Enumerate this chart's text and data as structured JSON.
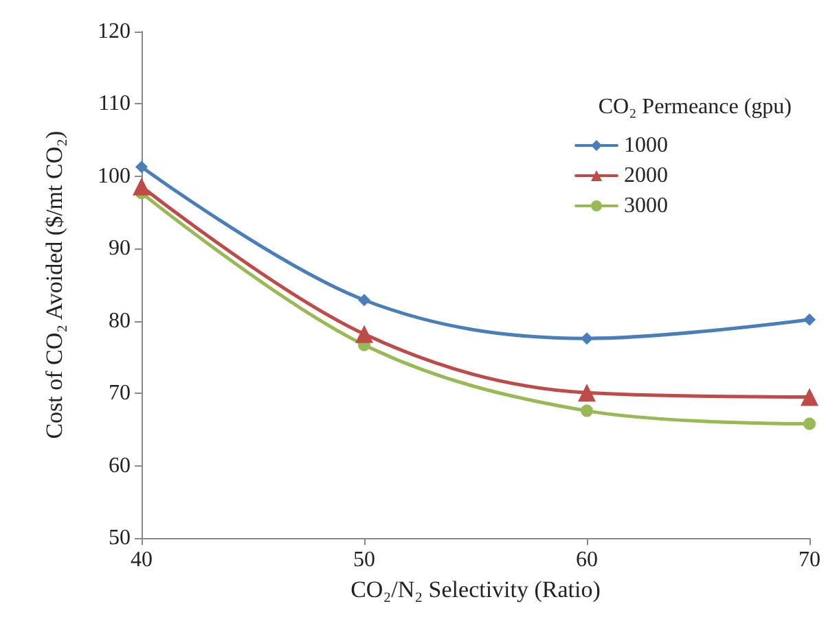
{
  "chart_data": {
    "type": "line",
    "xlabel": "CO₂/N₂ Selectivity (Ratio)",
    "ylabel": "Cost of CO₂ Avoided ($/mt CO₂)",
    "legend_title": "CO₂ Permeance (gpu)",
    "legend": "top right",
    "grid": false,
    "line_style": "solid",
    "x": [
      40,
      50,
      60,
      70
    ],
    "xlim": [
      40,
      70
    ],
    "xticks": [
      40,
      50,
      60,
      70
    ],
    "ylim": [
      50,
      120
    ],
    "yticks": [
      50,
      60,
      70,
      80,
      90,
      100,
      110,
      120
    ],
    "series": [
      {
        "name": "1000",
        "color": "#4a7ebb",
        "marker": "diamond",
        "values": [
          101.3,
          82.9,
          77.6,
          80.2
        ]
      },
      {
        "name": "2000",
        "color": "#be4b48",
        "marker": "triangle",
        "values": [
          98.6,
          78.2,
          70.1,
          69.5
        ]
      },
      {
        "name": "3000",
        "color": "#98b954",
        "marker": "circle",
        "values": [
          97.7,
          76.7,
          67.6,
          65.8
        ]
      }
    ]
  }
}
